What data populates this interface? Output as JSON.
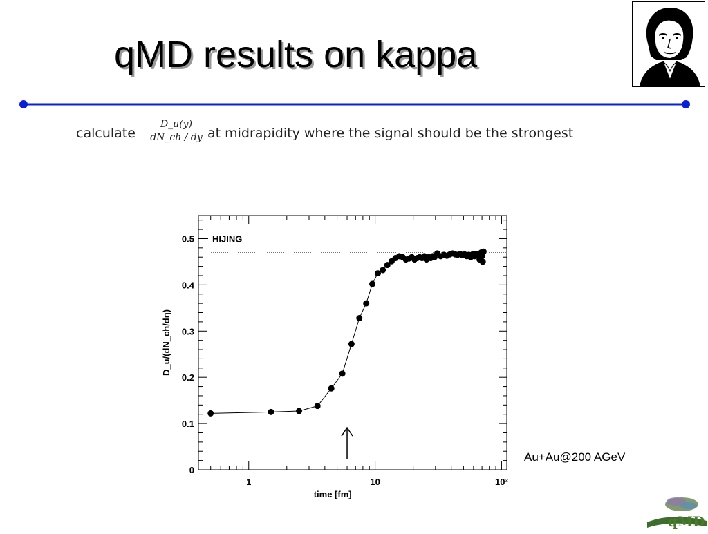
{
  "slide": {
    "title": "qMD results on kappa",
    "formula_prefix": "calculate",
    "formula_numerator": "D_u(y)",
    "formula_denominator": "dN_ch / dy",
    "formula_suffix": "at midrapidity where the signal should be the strongest",
    "annotation": "Au+Au@200 AGeV",
    "rule_color": "#0a1fd6",
    "logo_text": "qMD"
  },
  "chart_data": {
    "type": "line",
    "title": "",
    "legend_text": "HIJING",
    "xlabel": "time [fm]",
    "ylabel": "D_u/(dN_ch/dη)",
    "x_scale": "log",
    "xlim": [
      0.4,
      110
    ],
    "ylim": [
      0,
      0.55
    ],
    "x_ticks": [
      "1",
      "10",
      "10²"
    ],
    "y_ticks": [
      "0",
      "0.1",
      "0.2",
      "0.3",
      "0.4",
      "0.5"
    ],
    "reference_line_y": 0.47,
    "arrow_at_x": 6,
    "series": [
      {
        "marker": "filled-circle",
        "x": [
          0.5,
          1.5,
          2.5,
          3.5,
          4.5,
          5.5,
          6.5,
          7.5,
          8.5,
          9.5,
          10.5,
          11.5,
          12.5,
          13.5,
          14.5,
          15.5,
          16.5,
          17.5,
          18.5,
          19.5,
          20.5,
          21.5,
          22.5,
          23.5,
          24.5,
          25.5,
          26.5,
          27.5,
          28.5,
          29.5,
          31,
          33,
          35,
          37,
          39,
          41,
          43,
          45,
          47,
          49,
          51,
          53,
          55,
          57,
          59,
          61,
          63,
          65,
          67,
          69,
          70,
          71,
          72
        ],
        "y": [
          0.122,
          0.125,
          0.127,
          0.138,
          0.176,
          0.208,
          0.272,
          0.328,
          0.36,
          0.402,
          0.425,
          0.432,
          0.443,
          0.451,
          0.458,
          0.462,
          0.46,
          0.455,
          0.457,
          0.46,
          0.455,
          0.458,
          0.46,
          0.458,
          0.462,
          0.455,
          0.46,
          0.458,
          0.462,
          0.46,
          0.468,
          0.462,
          0.465,
          0.463,
          0.466,
          0.468,
          0.466,
          0.465,
          0.467,
          0.464,
          0.466,
          0.462,
          0.465,
          0.46,
          0.466,
          0.462,
          0.467,
          0.463,
          0.455,
          0.47,
          0.462,
          0.45,
          0.472
        ]
      }
    ]
  }
}
